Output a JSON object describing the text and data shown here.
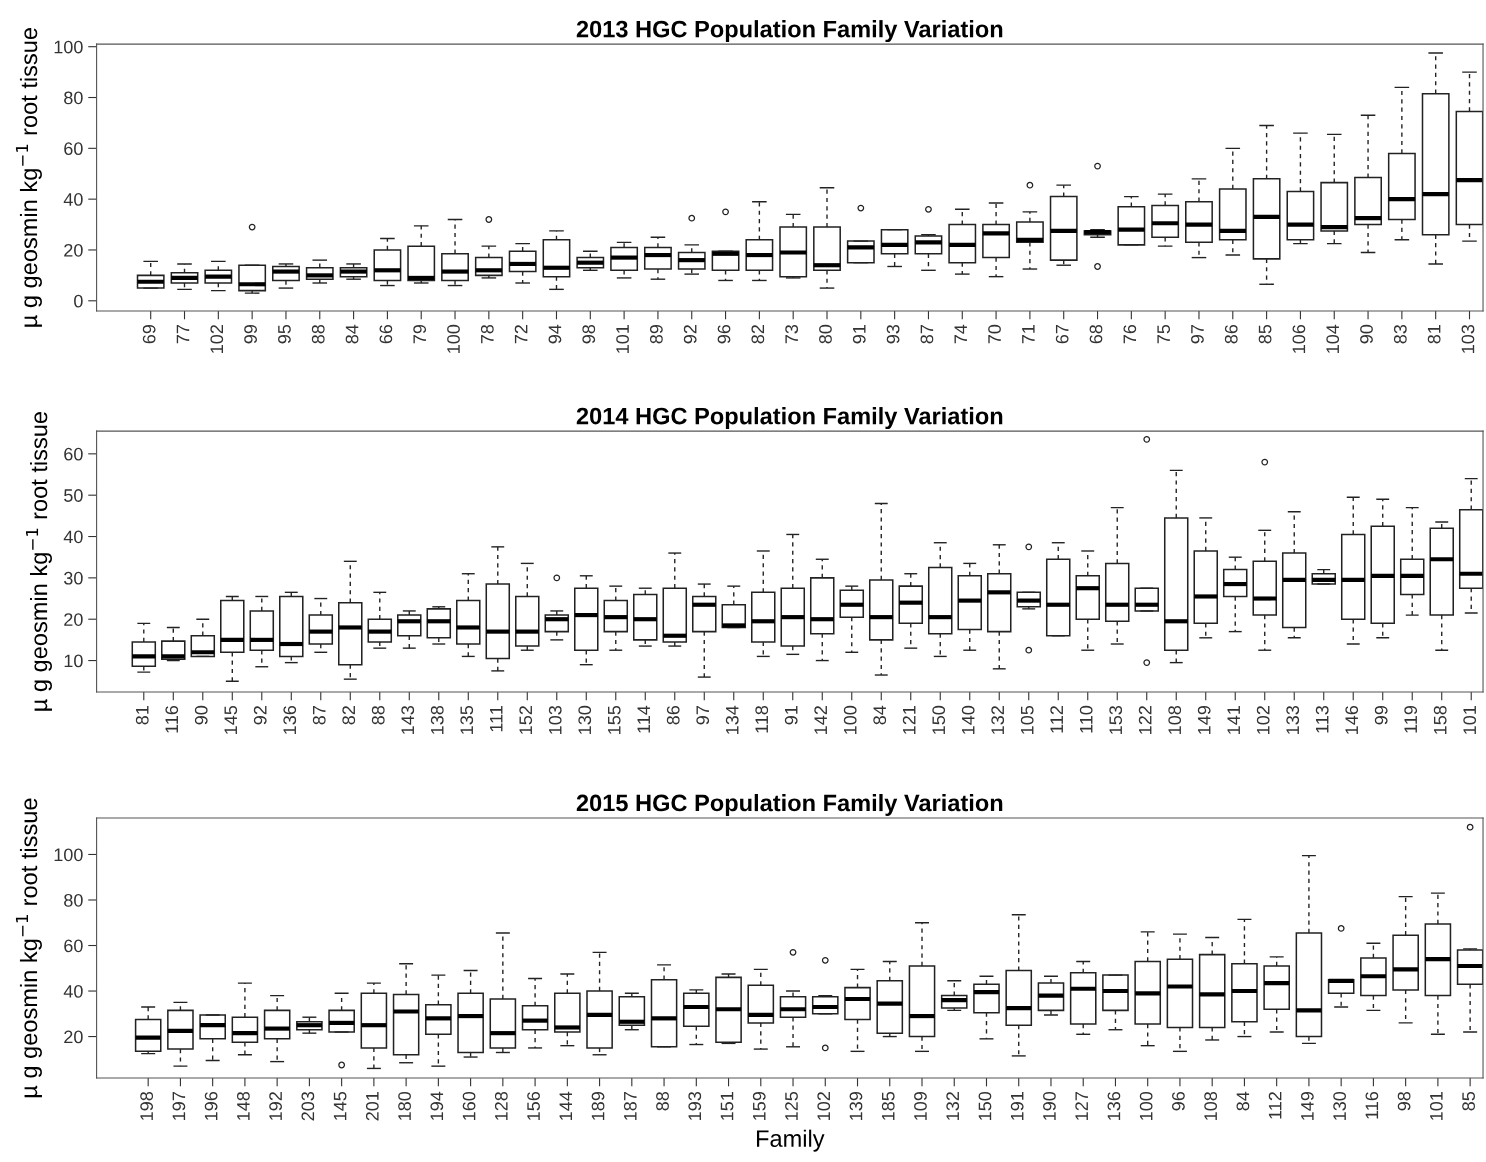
{
  "chart_data": [
    {
      "type": "box",
      "title": "2013 HGC Population Family Variation",
      "ylabel": "µ g geosmin kg$^{−1}$ root tissue",
      "categories": [
        "69",
        "77",
        "102",
        "99",
        "95",
        "88",
        "84",
        "66",
        "79",
        "100",
        "78",
        "72",
        "94",
        "98",
        "101",
        "89",
        "92",
        "96",
        "82",
        "73",
        "80",
        "91",
        "93",
        "87",
        "74",
        "70",
        "71",
        "67",
        "68",
        "76",
        "75",
        "97",
        "86",
        "85",
        "106",
        "104",
        "90",
        "83",
        "81",
        "103"
      ],
      "boxes": [
        {
          "low": 5,
          "q1": 5,
          "median": 7.5,
          "q3": 10,
          "high": 15.5
        },
        {
          "low": 4.5,
          "q1": 7,
          "median": 9,
          "q3": 11,
          "high": 14.5
        },
        {
          "low": 4,
          "q1": 7,
          "median": 9.5,
          "q3": 12,
          "high": 15.5
        },
        {
          "low": 3,
          "q1": 4,
          "median": 6.5,
          "q3": 14,
          "high": 14,
          "outliers": [
            29
          ]
        },
        {
          "low": 5,
          "q1": 8,
          "median": 11.5,
          "q3": 13.5,
          "high": 14.5
        },
        {
          "low": 7,
          "q1": 8.5,
          "median": 10,
          "q3": 13,
          "high": 16
        },
        {
          "low": 8.5,
          "q1": 9.5,
          "median": 11.5,
          "q3": 13,
          "high": 14.5
        },
        {
          "low": 6,
          "q1": 8,
          "median": 12,
          "q3": 20,
          "high": 24.5
        },
        {
          "low": 7,
          "q1": 8,
          "median": 9,
          "q3": 21.5,
          "high": 29.5
        },
        {
          "low": 6,
          "q1": 8,
          "median": 11.5,
          "q3": 18.5,
          "high": 32
        },
        {
          "low": 9,
          "q1": 10,
          "median": 12,
          "q3": 17,
          "high": 21.5,
          "outliers": [
            32
          ]
        },
        {
          "low": 7,
          "q1": 11.5,
          "median": 14.5,
          "q3": 19.5,
          "high": 22.5
        },
        {
          "low": 4.5,
          "q1": 9.5,
          "median": 13,
          "q3": 24,
          "high": 27.5
        },
        {
          "low": 12,
          "q1": 13,
          "median": 15,
          "q3": 17,
          "high": 19.5
        },
        {
          "low": 9,
          "q1": 12,
          "median": 17,
          "q3": 21,
          "high": 23
        },
        {
          "low": 8.5,
          "q1": 12.5,
          "median": 18,
          "q3": 21,
          "high": 25
        },
        {
          "low": 10.5,
          "q1": 12.5,
          "median": 16,
          "q3": 19,
          "high": 22,
          "outliers": [
            32.5
          ]
        },
        {
          "low": 8,
          "q1": 12,
          "median": 18.5,
          "q3": 19.5,
          "high": 19.5,
          "outliers": [
            35
          ]
        },
        {
          "low": 8,
          "q1": 12,
          "median": 18,
          "q3": 24,
          "high": 39
        },
        {
          "low": 9,
          "q1": 9.5,
          "median": 19,
          "q3": 29,
          "high": 34
        },
        {
          "low": 5,
          "q1": 12,
          "median": 14,
          "q3": 29,
          "high": 44.5
        },
        {
          "low": 15,
          "q1": 15,
          "median": 21,
          "q3": 23.5,
          "high": 23.5,
          "outliers": [
            36.5
          ]
        },
        {
          "low": 13.5,
          "q1": 18.5,
          "median": 22,
          "q3": 28,
          "high": 28
        },
        {
          "low": 12,
          "q1": 18.5,
          "median": 23,
          "q3": 25.5,
          "high": 26,
          "outliers": [
            36
          ]
        },
        {
          "low": 10.5,
          "q1": 15,
          "median": 22,
          "q3": 30,
          "high": 36
        },
        {
          "low": 9.5,
          "q1": 17,
          "median": 26.5,
          "q3": 30,
          "high": 38.5
        },
        {
          "low": 12.5,
          "q1": 23,
          "median": 24,
          "q3": 31,
          "high": 35,
          "outliers": [
            45.5
          ]
        },
        {
          "low": 14,
          "q1": 16,
          "median": 27.5,
          "q3": 41,
          "high": 45.5
        },
        {
          "low": 25,
          "q1": 26,
          "median": 27,
          "q3": 27.5,
          "high": 28,
          "outliers": [
            53,
            13.5
          ]
        },
        {
          "low": 22,
          "q1": 22,
          "median": 28,
          "q3": 37,
          "high": 41
        },
        {
          "low": 21.5,
          "q1": 25,
          "median": 30.5,
          "q3": 37.5,
          "high": 42
        },
        {
          "low": 17,
          "q1": 23,
          "median": 30,
          "q3": 39,
          "high": 48
        },
        {
          "low": 18,
          "q1": 24,
          "median": 27.5,
          "q3": 44,
          "high": 60
        },
        {
          "low": 6.5,
          "q1": 16.5,
          "median": 33,
          "q3": 48,
          "high": 69
        },
        {
          "low": 22.5,
          "q1": 24,
          "median": 30,
          "q3": 43,
          "high": 66
        },
        {
          "low": 22.5,
          "q1": 27.5,
          "median": 29,
          "q3": 46.5,
          "high": 65.5
        },
        {
          "low": 19,
          "q1": 30,
          "median": 32.5,
          "q3": 48.5,
          "high": 73
        },
        {
          "low": 24,
          "q1": 32,
          "median": 40,
          "q3": 58,
          "high": 84
        },
        {
          "low": 14.5,
          "q1": 26,
          "median": 42,
          "q3": 81.5,
          "high": 97.5
        },
        {
          "low": 23.5,
          "q1": 30,
          "median": 47.5,
          "q3": 74.5,
          "high": 90
        }
      ],
      "ylim": [
        -4,
        101
      ],
      "yticks": [
        0,
        20,
        40,
        60,
        80,
        100
      ]
    },
    {
      "type": "box",
      "title": "2014 HGC Population Family Variation",
      "ylabel": "µ g geosmin kg$^{−1}$ root tissue",
      "categories": [
        "81",
        "116",
        "90",
        "145",
        "92",
        "136",
        "87",
        "82",
        "88",
        "143",
        "138",
        "135",
        "111",
        "152",
        "103",
        "130",
        "155",
        "114",
        "86",
        "97",
        "134",
        "118",
        "91",
        "142",
        "100",
        "84",
        "121",
        "150",
        "140",
        "132",
        "105",
        "112",
        "110",
        "153",
        "122",
        "108",
        "149",
        "141",
        "102",
        "133",
        "113",
        "146",
        "99",
        "119",
        "158",
        "101"
      ],
      "boxes": [
        {
          "low": 7.2,
          "q1": 8.6,
          "median": 11,
          "q3": 14.5,
          "high": 19
        },
        {
          "low": 10,
          "q1": 10.3,
          "median": 11,
          "q3": 14.7,
          "high": 18
        },
        {
          "low": 11,
          "q1": 11,
          "median": 12,
          "q3": 16,
          "high": 20
        },
        {
          "low": 5,
          "q1": 12,
          "median": 15,
          "q3": 24.5,
          "high": 25.5
        },
        {
          "low": 8.5,
          "q1": 12.5,
          "median": 15,
          "q3": 22,
          "high": 25.5
        },
        {
          "low": 9.5,
          "q1": 11,
          "median": 14,
          "q3": 25.5,
          "high": 26.5
        },
        {
          "low": 12,
          "q1": 14,
          "median": 17,
          "q3": 21,
          "high": 25
        },
        {
          "low": 5.5,
          "q1": 9,
          "median": 18,
          "q3": 24,
          "high": 34
        },
        {
          "low": 13,
          "q1": 14.5,
          "median": 17,
          "q3": 20,
          "high": 26.5
        },
        {
          "low": 13,
          "q1": 16,
          "median": 19.5,
          "q3": 21,
          "high": 22
        },
        {
          "low": 14,
          "q1": 15.5,
          "median": 19.5,
          "q3": 22.5,
          "high": 23
        },
        {
          "low": 11,
          "q1": 14,
          "median": 18,
          "q3": 24.5,
          "high": 31
        },
        {
          "low": 7.5,
          "q1": 10.5,
          "median": 17,
          "q3": 28.5,
          "high": 37.5
        },
        {
          "low": 12.5,
          "q1": 13.5,
          "median": 17,
          "q3": 25.5,
          "high": 33.5
        },
        {
          "low": 15,
          "q1": 17,
          "median": 20,
          "q3": 21,
          "high": 22,
          "outliers": [
            30
          ]
        },
        {
          "low": 9,
          "q1": 12.5,
          "median": 21,
          "q3": 27.5,
          "high": 30.5
        },
        {
          "low": 12.5,
          "q1": 17,
          "median": 20.5,
          "q3": 24.5,
          "high": 28
        },
        {
          "low": 13.5,
          "q1": 15,
          "median": 20,
          "q3": 26,
          "high": 27.5
        },
        {
          "low": 13.5,
          "q1": 14.5,
          "median": 16,
          "q3": 27.5,
          "high": 36
        },
        {
          "low": 6,
          "q1": 17,
          "median": 23.5,
          "q3": 25.5,
          "high": 28.5
        },
        {
          "low": 18,
          "q1": 18,
          "median": 18.5,
          "q3": 23.5,
          "high": 28
        },
        {
          "low": 11,
          "q1": 14.5,
          "median": 19.5,
          "q3": 26.5,
          "high": 36.5
        },
        {
          "low": 11.5,
          "q1": 13.5,
          "median": 20.5,
          "q3": 27.5,
          "high": 40.5
        },
        {
          "low": 10,
          "q1": 16.5,
          "median": 20,
          "q3": 30,
          "high": 34.5
        },
        {
          "low": 12,
          "q1": 20.5,
          "median": 23.5,
          "q3": 27,
          "high": 28
        },
        {
          "low": 6.5,
          "q1": 15,
          "median": 20.5,
          "q3": 29.5,
          "high": 48
        },
        {
          "low": 13,
          "q1": 19,
          "median": 24,
          "q3": 28,
          "high": 31
        },
        {
          "low": 11,
          "q1": 16.5,
          "median": 20.5,
          "q3": 32.5,
          "high": 38.5
        },
        {
          "low": 12.5,
          "q1": 17.5,
          "median": 24.5,
          "q3": 30.5,
          "high": 33.5
        },
        {
          "low": 8,
          "q1": 17,
          "median": 26.5,
          "q3": 31,
          "high": 38
        },
        {
          "low": 22.5,
          "q1": 23,
          "median": 24.5,
          "q3": 26.5,
          "high": 26.5,
          "outliers": [
            37.5,
            12.5
          ]
        },
        {
          "low": 16,
          "q1": 16,
          "median": 23.5,
          "q3": 34.5,
          "high": 38.5
        },
        {
          "low": 12.5,
          "q1": 20,
          "median": 27.5,
          "q3": 30.5,
          "high": 36.5
        },
        {
          "low": 14,
          "q1": 19.5,
          "median": 23.5,
          "q3": 33.5,
          "high": 47
        },
        {
          "low": 22,
          "q1": 22,
          "median": 23.5,
          "q3": 27.5,
          "high": 27.5,
          "outliers": [
            63.5,
            9.5
          ]
        },
        {
          "low": 9.5,
          "q1": 12.5,
          "median": 19.5,
          "q3": 44.5,
          "high": 56
        },
        {
          "low": 15.5,
          "q1": 19,
          "median": 25.5,
          "q3": 36.5,
          "high": 44.5
        },
        {
          "low": 17,
          "q1": 25.5,
          "median": 28.5,
          "q3": 32,
          "high": 35
        },
        {
          "low": 12.5,
          "q1": 21,
          "median": 25,
          "q3": 34,
          "high": 41.5,
          "outliers": [
            58
          ]
        },
        {
          "low": 15.5,
          "q1": 18,
          "median": 29.5,
          "q3": 36,
          "high": 46
        },
        {
          "low": 28.5,
          "q1": 28.5,
          "median": 29.5,
          "q3": 31,
          "high": 32
        },
        {
          "low": 14,
          "q1": 20,
          "median": 29.5,
          "q3": 40.5,
          "high": 49.5
        },
        {
          "low": 15.5,
          "q1": 19,
          "median": 30.5,
          "q3": 42.5,
          "high": 49
        },
        {
          "low": 21,
          "q1": 26,
          "median": 30.5,
          "q3": 34.5,
          "high": 47
        },
        {
          "low": 12.5,
          "q1": 21,
          "median": 34.5,
          "q3": 42,
          "high": 43.5
        },
        {
          "low": 21.5,
          "q1": 27.5,
          "median": 31,
          "q3": 46.5,
          "high": 54
        }
      ],
      "ylim": [
        2.4,
        65.5
      ],
      "yticks": [
        10,
        20,
        30,
        40,
        50,
        60
      ]
    },
    {
      "type": "box",
      "title": "2015 HGC Population Family Variation",
      "ylabel": "µ g geosmin kg$^{−1}$ root tissue",
      "xlabel": "Family",
      "categories": [
        "198",
        "197",
        "196",
        "148",
        "192",
        "203",
        "145",
        "201",
        "180",
        "194",
        "160",
        "128",
        "156",
        "144",
        "189",
        "187",
        "88",
        "193",
        "151",
        "159",
        "125",
        "102",
        "139",
        "185",
        "109",
        "132",
        "150",
        "191",
        "190",
        "127",
        "136",
        "100",
        "96",
        "108",
        "84",
        "112",
        "149",
        "130",
        "116",
        "98",
        "101",
        "85"
      ],
      "boxes": [
        {
          "low": 12.5,
          "q1": 13.5,
          "median": 19.5,
          "q3": 27.5,
          "high": 33
        },
        {
          "low": 7,
          "q1": 14.5,
          "median": 22.5,
          "q3": 31.5,
          "high": 35
        },
        {
          "low": 9.5,
          "q1": 19,
          "median": 25,
          "q3": 29.5,
          "high": 29.5
        },
        {
          "low": 12,
          "q1": 17.5,
          "median": 21.5,
          "q3": 28.5,
          "high": 43.5
        },
        {
          "low": 9,
          "q1": 19,
          "median": 23.5,
          "q3": 31.5,
          "high": 38
        },
        {
          "low": 21.5,
          "q1": 23,
          "median": 25,
          "q3": 26.5,
          "high": 28.5
        },
        {
          "low": 22,
          "q1": 22,
          "median": 26,
          "q3": 31.5,
          "high": 39,
          "outliers": [
            7.5
          ]
        },
        {
          "low": 6,
          "q1": 15,
          "median": 25,
          "q3": 39,
          "high": 43.5
        },
        {
          "low": 8.5,
          "q1": 12,
          "median": 31,
          "q3": 38.5,
          "high": 52
        },
        {
          "low": 7,
          "q1": 21,
          "median": 28,
          "q3": 34,
          "high": 47
        },
        {
          "low": 11,
          "q1": 13,
          "median": 29,
          "q3": 39,
          "high": 49
        },
        {
          "low": 13,
          "q1": 15,
          "median": 21.5,
          "q3": 36.5,
          "high": 65.5
        },
        {
          "low": 15,
          "q1": 23,
          "median": 27,
          "q3": 33.5,
          "high": 45.5
        },
        {
          "low": 16,
          "q1": 22,
          "median": 24,
          "q3": 39,
          "high": 47.5
        },
        {
          "low": 12,
          "q1": 15,
          "median": 29.5,
          "q3": 40,
          "high": 57
        },
        {
          "low": 23,
          "q1": 25,
          "median": 26.5,
          "q3": 37.5,
          "high": 39
        },
        {
          "low": 15.5,
          "q1": 15.5,
          "median": 28,
          "q3": 45,
          "high": 51.5
        },
        {
          "low": 16.5,
          "q1": 24.5,
          "median": 33,
          "q3": 39,
          "high": 40.5
        },
        {
          "low": 17,
          "q1": 17.5,
          "median": 32,
          "q3": 46,
          "high": 47.5
        },
        {
          "low": 14.5,
          "q1": 26,
          "median": 29.5,
          "q3": 42.5,
          "high": 49.5
        },
        {
          "low": 15.5,
          "q1": 28.5,
          "median": 32,
          "q3": 37.5,
          "high": 40,
          "outliers": [
            57
          ]
        },
        {
          "low": 30,
          "q1": 30,
          "median": 33,
          "q3": 37.5,
          "high": 38,
          "outliers": [
            53.5,
            15
          ]
        },
        {
          "low": 13.5,
          "q1": 27.5,
          "median": 36.5,
          "q3": 41.5,
          "high": 49.5
        },
        {
          "low": 20,
          "q1": 21.5,
          "median": 34.5,
          "q3": 44.5,
          "high": 53
        },
        {
          "low": 13.5,
          "q1": 20,
          "median": 29,
          "q3": 51,
          "high": 70
        },
        {
          "low": 31.5,
          "q1": 32.5,
          "median": 36,
          "q3": 38,
          "high": 44.5
        },
        {
          "low": 19,
          "q1": 30.5,
          "median": 39.5,
          "q3": 43,
          "high": 46.5
        },
        {
          "low": 11.5,
          "q1": 25,
          "median": 32.5,
          "q3": 49,
          "high": 73.5
        },
        {
          "low": 29.5,
          "q1": 31.5,
          "median": 38,
          "q3": 43.5,
          "high": 46.5
        },
        {
          "low": 21,
          "q1": 25.5,
          "median": 41,
          "q3": 48,
          "high": 53
        },
        {
          "low": 23,
          "q1": 31.5,
          "median": 40,
          "q3": 47,
          "high": 47
        },
        {
          "low": 16,
          "q1": 25.5,
          "median": 39,
          "q3": 53,
          "high": 66
        },
        {
          "low": 13.5,
          "q1": 24,
          "median": 42,
          "q3": 54,
          "high": 65
        },
        {
          "low": 18.5,
          "q1": 24,
          "median": 38.5,
          "q3": 56,
          "high": 63.5
        },
        {
          "low": 20,
          "q1": 26.5,
          "median": 40,
          "q3": 52,
          "high": 71.5
        },
        {
          "low": 22,
          "q1": 32,
          "median": 43.5,
          "q3": 51,
          "high": 55
        },
        {
          "low": 17,
          "q1": 20,
          "median": 31.5,
          "q3": 65.5,
          "high": 99.5
        },
        {
          "low": 33,
          "q1": 39,
          "median": 44.5,
          "q3": 45,
          "high": 45,
          "outliers": [
            67.5
          ]
        },
        {
          "low": 31.5,
          "q1": 38,
          "median": 46.5,
          "q3": 54.5,
          "high": 61
        },
        {
          "low": 26,
          "q1": 40.5,
          "median": 49.5,
          "q3": 64.5,
          "high": 81.5
        },
        {
          "low": 21,
          "q1": 38,
          "median": 54,
          "q3": 69.5,
          "high": 83
        },
        {
          "low": 22,
          "q1": 43,
          "median": 51,
          "q3": 58,
          "high": 58.5,
          "outliers": [
            112
          ]
        }
      ],
      "ylim": [
        1.8,
        116
      ],
      "yticks": [
        20,
        40,
        60,
        80,
        100
      ]
    }
  ]
}
